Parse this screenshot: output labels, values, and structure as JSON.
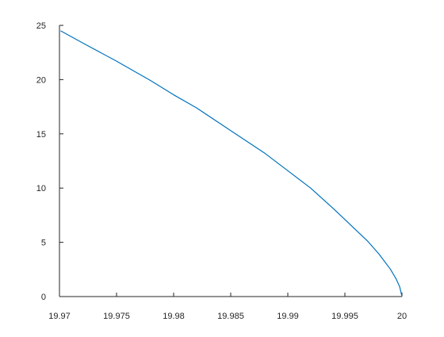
{
  "chart_data": {
    "type": "line",
    "title": "",
    "xlabel": "",
    "ylabel": "",
    "xlim": [
      19.97,
      20
    ],
    "ylim": [
      0,
      25
    ],
    "x_ticks": [
      19.97,
      19.975,
      19.98,
      19.985,
      19.99,
      19.995,
      20
    ],
    "x_tick_labels": [
      "19.97",
      "19.975",
      "19.98",
      "19.985",
      "19.99",
      "19.995",
      "20"
    ],
    "y_ticks": [
      0,
      5,
      10,
      15,
      20,
      25
    ],
    "y_tick_labels": [
      "0",
      "5",
      "10",
      "15",
      "20",
      "25"
    ],
    "grid": false,
    "legend": "none",
    "series": [
      {
        "color": "#0072BD",
        "x": [
          19.9701,
          19.972,
          19.975,
          19.978,
          19.98,
          19.982,
          19.985,
          19.988,
          19.99,
          19.992,
          19.994,
          19.995,
          19.996,
          19.997,
          19.998,
          19.999,
          19.9995,
          19.9998,
          20
        ],
        "y": [
          24.5,
          23.4,
          21.7,
          19.9,
          18.6,
          17.4,
          15.3,
          13.2,
          11.6,
          10.0,
          8.1,
          7.1,
          6.1,
          5.1,
          3.9,
          2.5,
          1.6,
          0.9,
          0
        ]
      }
    ]
  }
}
